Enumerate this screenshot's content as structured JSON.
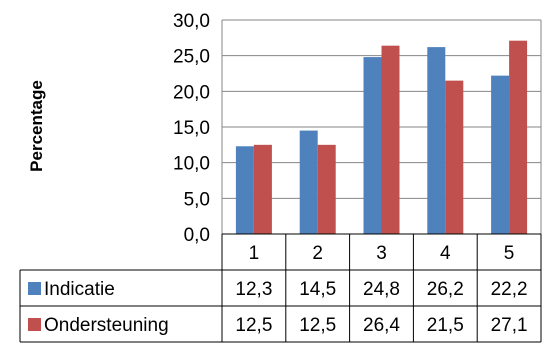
{
  "chart_data": {
    "type": "bar",
    "ylabel": "Percentage",
    "ylim": [
      0,
      30
    ],
    "yticks": [
      "0,0",
      "5,0",
      "10,0",
      "15,0",
      "20,0",
      "25,0",
      "30,0"
    ],
    "categories": [
      "1",
      "2",
      "3",
      "4",
      "5"
    ],
    "series": [
      {
        "name": "Indicatie",
        "color": "#4F81BD",
        "values": [
          12.3,
          14.5,
          24.8,
          26.2,
          22.2
        ],
        "labels": [
          "12,3",
          "14,5",
          "24,8",
          "26,2",
          "22,2"
        ]
      },
      {
        "name": "Ondersteuning",
        "color": "#C0504D",
        "values": [
          12.5,
          12.5,
          26.4,
          21.5,
          27.1
        ],
        "labels": [
          "12,5",
          "12,5",
          "26,4",
          "21,5",
          "27,1"
        ]
      }
    ],
    "grid": true,
    "legend": "data-table"
  }
}
